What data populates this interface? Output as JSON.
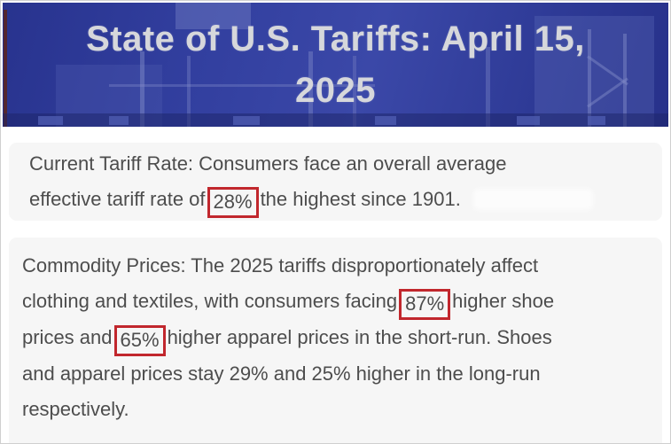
{
  "banner": {
    "title_line1": "State of U.S. Tariffs: April 15,",
    "title_line2": "2025"
  },
  "card1": {
    "lines": [
      [
        {
          "t": "Current Tariff Rate: Consumers face an overall average"
        }
      ],
      [
        {
          "t": "effective tariff rate of"
        },
        {
          "t": "28%",
          "boxed": true
        },
        {
          "t": "the highest since 1901."
        }
      ]
    ]
  },
  "card2": {
    "lines": [
      [
        {
          "t": "Commodity Prices: The 2025 tariffs disproportionately affect"
        }
      ],
      [
        {
          "t": "clothing and textiles, with consumers facing"
        },
        {
          "t": "87%",
          "boxed": true
        },
        {
          "t": "higher shoe"
        }
      ],
      [
        {
          "t": "prices and"
        },
        {
          "t": "65%",
          "boxed": true
        },
        {
          "t": "higher apparel prices in the short-run. Shoes"
        }
      ],
      [
        {
          "t": "and apparel prices stay 29% and 25% higher in the long-run"
        }
      ],
      [
        {
          "t": "respectively."
        }
      ]
    ]
  },
  "colors": {
    "banner_blue": "#2f3c9e",
    "banner_blue_dark": "#232d7c",
    "banner_blue_light": "#5d6ab7",
    "banner_text": "#d6d7db",
    "accent_red": "#c1272d",
    "card_bg": "#f6f6f6",
    "body_text": "#4d4d4d",
    "page_bg": "#ffffff"
  }
}
